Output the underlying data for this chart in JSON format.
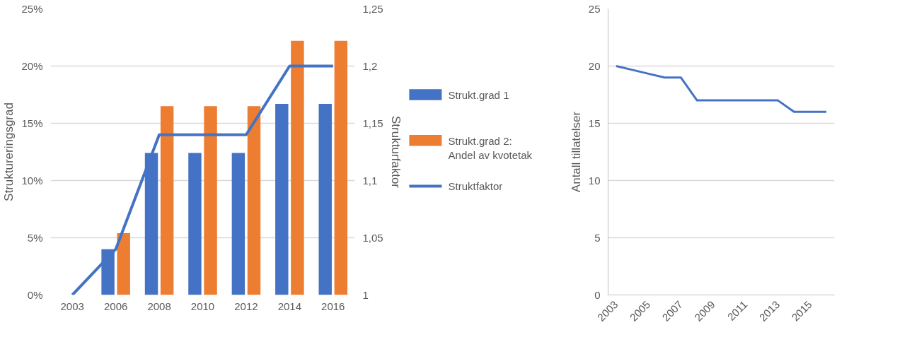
{
  "chart_data": [
    {
      "type": "bar",
      "categories": [
        "2003",
        "2006",
        "2008",
        "2010",
        "2012",
        "2014",
        "2016"
      ],
      "ylabel": "Struktureringsgrad",
      "y2label": "Strukturfaktor",
      "series": [
        {
          "name": "Strukt.grad 1",
          "color": "#4472c4",
          "values": [
            0,
            4.0,
            12.4,
            12.4,
            12.4,
            16.7,
            16.7
          ]
        },
        {
          "name": "Strukt.grad 2:\nAndel av kvotetak",
          "color": "#ed7d31",
          "values": [
            0,
            5.4,
            16.5,
            16.5,
            16.5,
            22.2,
            22.2
          ]
        },
        {
          "name": "Struktfaktor",
          "type": "line",
          "axis": "y2",
          "color": "#4472c4",
          "values": [
            1,
            1.04,
            1.14,
            1.14,
            1.14,
            1.2,
            1.2
          ]
        }
      ],
      "ylim": [
        0,
        25
      ],
      "yticks": [
        {
          "value": 0,
          "label": "0%"
        },
        {
          "value": 5,
          "label": "5%"
        },
        {
          "value": 10,
          "label": "10%"
        },
        {
          "value": 15,
          "label": "15%"
        },
        {
          "value": 20,
          "label": "20%"
        },
        {
          "value": 25,
          "label": "25%"
        }
      ],
      "y2lim": [
        1,
        1.25
      ],
      "y2ticks": [
        {
          "value": 1,
          "label": "1"
        },
        {
          "value": 1.05,
          "label": "1,05"
        },
        {
          "value": 1.1,
          "label": "1,1"
        },
        {
          "value": 1.15,
          "label": "1,15"
        },
        {
          "value": 1.2,
          "label": "1,2"
        },
        {
          "value": 1.25,
          "label": "1,25"
        }
      ],
      "grid": "y",
      "legend": "right"
    },
    {
      "type": "line",
      "ylabel": "Antall tillatelser",
      "x": [
        2003,
        2004,
        2005,
        2006,
        2007,
        2008,
        2009,
        2010,
        2011,
        2012,
        2013,
        2014,
        2015,
        2016
      ],
      "series": [
        {
          "color": "#4472c4",
          "values": [
            20,
            19.67,
            19.33,
            19,
            19,
            17,
            17,
            17,
            17,
            17,
            17,
            16,
            16,
            16
          ]
        }
      ],
      "xlim": [
        2002.5,
        2016.5
      ],
      "xticks": [
        2003,
        2005,
        2007,
        2009,
        2011,
        2013,
        2015
      ],
      "ylim": [
        0,
        25
      ],
      "yticks": [
        0,
        5,
        10,
        15,
        20,
        25
      ],
      "grid": "y",
      "legend": false
    }
  ]
}
